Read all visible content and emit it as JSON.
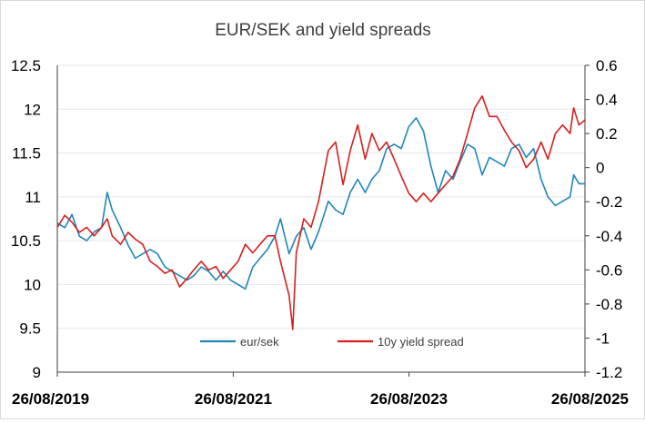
{
  "chart_data": {
    "type": "line",
    "title": "EUR/SEK and yield spreads",
    "xlabel": "",
    "ylabel_left": "",
    "ylabel_right": "",
    "x_ticks": [
      "26/08/2019",
      "26/08/2021",
      "26/08/2023",
      "26/08/2025"
    ],
    "ylim_left": [
      9,
      12.5
    ],
    "ylim_right": [
      -1.2,
      0.6
    ],
    "y_ticks_left": [
      "12.5",
      "12",
      "11.5",
      "11",
      "10.5",
      "10",
      "9.5",
      "9"
    ],
    "y_ticks_right": [
      "0.6",
      "0.4",
      "0.2",
      "0",
      "-0.2",
      "-0.4",
      "-0.6",
      "-0.8",
      "-1",
      "-1.2"
    ],
    "gridlines": "horizontal",
    "legend_position": "bottom-inside",
    "series": [
      {
        "name": "eur/sek",
        "axis": "left",
        "color": "#1f86b8",
        "points": [
          [
            "2019-08-26",
            10.7
          ],
          [
            "2019-09-26",
            10.65
          ],
          [
            "2019-10-26",
            10.8
          ],
          [
            "2019-11-26",
            10.55
          ],
          [
            "2019-12-26",
            10.5
          ],
          [
            "2020-01-26",
            10.6
          ],
          [
            "2020-02-26",
            10.65
          ],
          [
            "2020-03-20",
            11.05
          ],
          [
            "2020-04-10",
            10.85
          ],
          [
            "2020-05-15",
            10.65
          ],
          [
            "2020-06-15",
            10.45
          ],
          [
            "2020-07-15",
            10.3
          ],
          [
            "2020-08-15",
            10.35
          ],
          [
            "2020-09-15",
            10.4
          ],
          [
            "2020-10-15",
            10.35
          ],
          [
            "2020-11-15",
            10.2
          ],
          [
            "2020-12-15",
            10.15
          ],
          [
            "2021-01-15",
            10.1
          ],
          [
            "2021-02-15",
            10.05
          ],
          [
            "2021-03-15",
            10.1
          ],
          [
            "2021-04-15",
            10.2
          ],
          [
            "2021-05-15",
            10.15
          ],
          [
            "2021-06-15",
            10.05
          ],
          [
            "2021-07-15",
            10.15
          ],
          [
            "2021-08-15",
            10.05
          ],
          [
            "2021-09-15",
            10.0
          ],
          [
            "2021-10-15",
            9.95
          ],
          [
            "2021-11-15",
            10.2
          ],
          [
            "2021-12-15",
            10.3
          ],
          [
            "2022-01-15",
            10.4
          ],
          [
            "2022-02-15",
            10.55
          ],
          [
            "2022-03-10",
            10.75
          ],
          [
            "2022-04-15",
            10.35
          ],
          [
            "2022-05-15",
            10.55
          ],
          [
            "2022-06-15",
            10.65
          ],
          [
            "2022-07-15",
            10.4
          ],
          [
            "2022-08-15",
            10.6
          ],
          [
            "2022-09-25",
            10.95
          ],
          [
            "2022-10-25",
            10.85
          ],
          [
            "2022-11-25",
            10.8
          ],
          [
            "2022-12-25",
            11.05
          ],
          [
            "2023-01-25",
            11.2
          ],
          [
            "2023-02-25",
            11.05
          ],
          [
            "2023-03-25",
            11.2
          ],
          [
            "2023-04-25",
            11.3
          ],
          [
            "2023-05-25",
            11.55
          ],
          [
            "2023-06-25",
            11.6
          ],
          [
            "2023-07-25",
            11.55
          ],
          [
            "2023-08-25",
            11.8
          ],
          [
            "2023-09-25",
            11.9
          ],
          [
            "2023-10-25",
            11.75
          ],
          [
            "2023-11-25",
            11.35
          ],
          [
            "2023-12-25",
            11.05
          ],
          [
            "2024-01-25",
            11.3
          ],
          [
            "2024-02-25",
            11.2
          ],
          [
            "2024-03-25",
            11.4
          ],
          [
            "2024-04-25",
            11.6
          ],
          [
            "2024-05-25",
            11.55
          ],
          [
            "2024-06-25",
            11.25
          ],
          [
            "2024-07-25",
            11.45
          ],
          [
            "2024-08-25",
            11.4
          ],
          [
            "2024-09-25",
            11.35
          ],
          [
            "2024-10-25",
            11.55
          ],
          [
            "2024-11-25",
            11.6
          ],
          [
            "2024-12-25",
            11.45
          ],
          [
            "2025-01-25",
            11.55
          ],
          [
            "2025-02-25",
            11.2
          ],
          [
            "2025-03-25",
            11.0
          ],
          [
            "2025-04-25",
            10.9
          ],
          [
            "2025-05-25",
            10.95
          ],
          [
            "2025-06-25",
            11.0
          ],
          [
            "2025-07-10",
            11.25
          ],
          [
            "2025-08-01",
            11.15
          ],
          [
            "2025-08-26",
            11.15
          ]
        ]
      },
      {
        "name": "10y yield spread",
        "axis": "right",
        "color": "#d61f1f",
        "points": [
          [
            "2019-08-26",
            -0.35
          ],
          [
            "2019-09-26",
            -0.28
          ],
          [
            "2019-10-26",
            -0.32
          ],
          [
            "2019-11-26",
            -0.38
          ],
          [
            "2019-12-26",
            -0.35
          ],
          [
            "2020-01-26",
            -0.4
          ],
          [
            "2020-02-26",
            -0.35
          ],
          [
            "2020-03-20",
            -0.3
          ],
          [
            "2020-04-10",
            -0.4
          ],
          [
            "2020-05-15",
            -0.45
          ],
          [
            "2020-06-15",
            -0.38
          ],
          [
            "2020-07-15",
            -0.42
          ],
          [
            "2020-08-15",
            -0.45
          ],
          [
            "2020-09-15",
            -0.55
          ],
          [
            "2020-10-15",
            -0.58
          ],
          [
            "2020-11-15",
            -0.62
          ],
          [
            "2020-12-15",
            -0.6
          ],
          [
            "2021-01-15",
            -0.7
          ],
          [
            "2021-02-15",
            -0.65
          ],
          [
            "2021-03-15",
            -0.6
          ],
          [
            "2021-04-15",
            -0.55
          ],
          [
            "2021-05-15",
            -0.6
          ],
          [
            "2021-06-15",
            -0.58
          ],
          [
            "2021-07-15",
            -0.65
          ],
          [
            "2021-08-15",
            -0.6
          ],
          [
            "2021-09-15",
            -0.55
          ],
          [
            "2021-10-15",
            -0.45
          ],
          [
            "2021-11-15",
            -0.5
          ],
          [
            "2021-12-15",
            -0.45
          ],
          [
            "2022-01-15",
            -0.4
          ],
          [
            "2022-02-15",
            -0.4
          ],
          [
            "2022-03-10",
            -0.55
          ],
          [
            "2022-04-15",
            -0.75
          ],
          [
            "2022-04-30",
            -0.95
          ],
          [
            "2022-05-15",
            -0.5
          ],
          [
            "2022-06-15",
            -0.3
          ],
          [
            "2022-07-15",
            -0.35
          ],
          [
            "2022-08-15",
            -0.2
          ],
          [
            "2022-09-25",
            0.1
          ],
          [
            "2022-10-25",
            0.15
          ],
          [
            "2022-11-25",
            -0.1
          ],
          [
            "2022-12-25",
            0.1
          ],
          [
            "2023-01-25",
            0.25
          ],
          [
            "2023-02-25",
            0.05
          ],
          [
            "2023-03-25",
            0.2
          ],
          [
            "2023-04-25",
            0.1
          ],
          [
            "2023-05-25",
            0.15
          ],
          [
            "2023-06-25",
            0.05
          ],
          [
            "2023-07-25",
            -0.05
          ],
          [
            "2023-08-25",
            -0.15
          ],
          [
            "2023-09-25",
            -0.2
          ],
          [
            "2023-10-25",
            -0.15
          ],
          [
            "2023-11-25",
            -0.2
          ],
          [
            "2023-12-25",
            -0.15
          ],
          [
            "2024-01-25",
            -0.1
          ],
          [
            "2024-02-25",
            -0.05
          ],
          [
            "2024-03-25",
            0.05
          ],
          [
            "2024-04-25",
            0.2
          ],
          [
            "2024-05-25",
            0.35
          ],
          [
            "2024-06-25",
            0.42
          ],
          [
            "2024-07-25",
            0.3
          ],
          [
            "2024-08-25",
            0.3
          ],
          [
            "2024-09-25",
            0.22
          ],
          [
            "2024-10-25",
            0.15
          ],
          [
            "2024-11-25",
            0.1
          ],
          [
            "2024-12-25",
            0.0
          ],
          [
            "2025-01-25",
            0.05
          ],
          [
            "2025-02-25",
            0.15
          ],
          [
            "2025-03-25",
            0.05
          ],
          [
            "2025-04-25",
            0.2
          ],
          [
            "2025-05-25",
            0.25
          ],
          [
            "2025-06-25",
            0.2
          ],
          [
            "2025-07-10",
            0.35
          ],
          [
            "2025-08-01",
            0.25
          ],
          [
            "2025-08-26",
            0.28
          ]
        ]
      }
    ]
  }
}
